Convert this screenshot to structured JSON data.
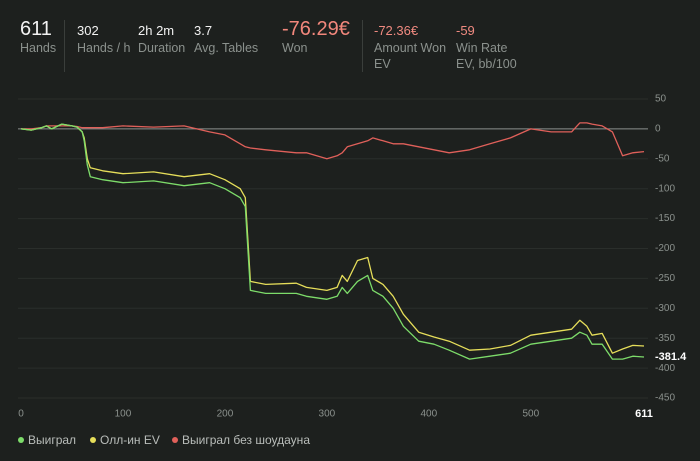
{
  "stats": [
    {
      "value": "611",
      "label": "Hands"
    },
    {
      "value": "302",
      "label": "Hands / h"
    },
    {
      "value": "2h 2m",
      "label": "Duration"
    },
    {
      "value": "3.7",
      "label": "Avg. Tables"
    },
    {
      "value": "-76.29€",
      "label": "Won"
    },
    {
      "value": "-72.36€",
      "label": "Amount Won EV"
    },
    {
      "value": "-59",
      "label": "Win Rate EV, bb/100"
    }
  ],
  "chart_data": {
    "type": "line",
    "x": [
      0,
      10,
      20,
      25,
      30,
      40,
      50,
      55,
      60,
      62,
      65,
      68,
      80,
      100,
      130,
      160,
      185,
      200,
      215,
      220,
      225,
      240,
      270,
      280,
      300,
      310,
      315,
      320,
      330,
      340,
      345,
      355,
      365,
      375,
      390,
      405,
      420,
      440,
      460,
      480,
      500,
      520,
      540,
      548,
      555,
      560,
      570,
      580,
      590,
      600,
      611
    ],
    "series": [
      {
        "name": "Выиграл",
        "color": "#7ddc6a",
        "values": [
          0,
          -2,
          2,
          5,
          0,
          8,
          5,
          3,
          -5,
          -20,
          -60,
          -80,
          -85,
          -90,
          -87,
          -95,
          -90,
          -100,
          -115,
          -130,
          -270,
          -275,
          -275,
          -280,
          -285,
          -280,
          -265,
          -275,
          -255,
          -245,
          -270,
          -280,
          -300,
          -330,
          -355,
          -360,
          -370,
          -385,
          -380,
          -375,
          -360,
          -355,
          -350,
          -340,
          -345,
          -360,
          -360,
          -385,
          -385,
          -380,
          -381.4
        ]
      },
      {
        "name": "Олл-ин EV",
        "color": "#e6de5a",
        "values": [
          0,
          -2,
          2,
          5,
          0,
          8,
          5,
          3,
          -5,
          -15,
          -50,
          -65,
          -70,
          -75,
          -72,
          -80,
          -75,
          -85,
          -100,
          -115,
          -255,
          -260,
          -258,
          -265,
          -270,
          -265,
          -245,
          -255,
          -220,
          -215,
          -250,
          -260,
          -280,
          -310,
          -340,
          -348,
          -355,
          -370,
          -368,
          -362,
          -345,
          -340,
          -335,
          -320,
          -330,
          -345,
          -342,
          -375,
          -368,
          -362,
          -363
        ]
      },
      {
        "name": "Выиграл без шоудауна",
        "color": "#e0605a",
        "values": [
          0,
          0,
          2,
          5,
          5,
          5,
          5,
          4,
          2,
          2,
          2,
          2,
          2,
          5,
          3,
          5,
          -5,
          -10,
          -25,
          -30,
          -32,
          -35,
          -40,
          -40,
          -50,
          -45,
          -40,
          -30,
          -25,
          -20,
          -15,
          -20,
          -25,
          -25,
          -30,
          -35,
          -40,
          -35,
          -25,
          -15,
          0,
          -5,
          -5,
          10,
          10,
          8,
          5,
          -5,
          -45,
          -40,
          -38
        ]
      }
    ],
    "xlim": [
      0,
      611
    ],
    "xticks": [
      0,
      100,
      200,
      300,
      400,
      500
    ],
    "ylim": [
      -460,
      60
    ],
    "yticks": [
      50,
      0,
      -50,
      -100,
      -150,
      -200,
      -250,
      -300,
      -350,
      -400,
      -450
    ],
    "grid": true
  }
}
